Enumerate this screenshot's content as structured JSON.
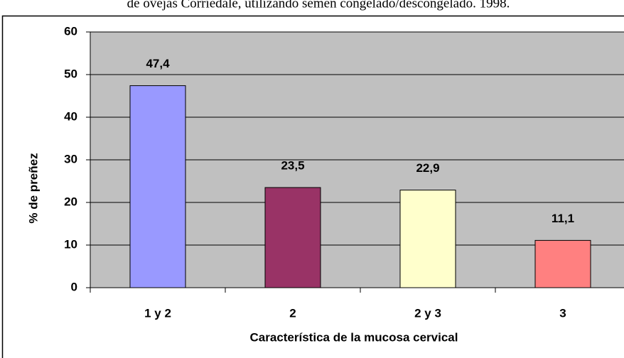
{
  "chart_data": {
    "type": "bar",
    "title": "de ovejas Corriedale, utilizando semen congelado/descongelado. 1998.",
    "x_label": "Característica de la mucosa cervical",
    "y_label": "% de preñez",
    "categories": [
      "1 y 2",
      "2",
      "2 y 3",
      "3"
    ],
    "values": [
      47.4,
      23.5,
      22.9,
      11.1
    ],
    "value_labels": [
      "47,4",
      "23,5",
      "22,9",
      "11,1"
    ],
    "colors": [
      "#9999ff",
      "#993366",
      "#ffffcc",
      "#ff8080"
    ],
    "ylim": [
      0,
      60
    ],
    "yticks": [
      0,
      10,
      20,
      30,
      40,
      50,
      60
    ],
    "grid": true
  }
}
